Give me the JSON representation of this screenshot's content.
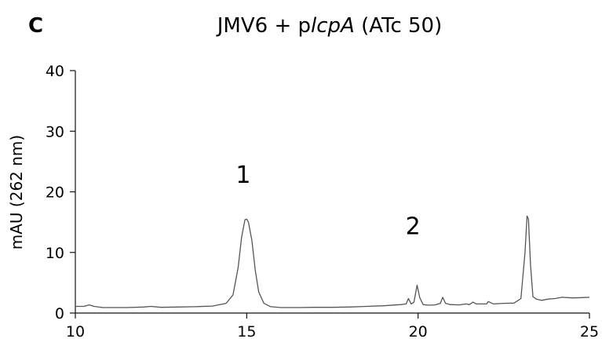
{
  "panel_label": "C",
  "chart_data": {
    "type": "line",
    "title_parts": [
      {
        "text": "JMV6 + p",
        "italic": false
      },
      {
        "text": "lcpA",
        "italic": true
      },
      {
        "text": " (ATc 50)",
        "italic": false
      }
    ],
    "xlabel": "",
    "ylabel": "mAU (262 nm)",
    "xlim": [
      10,
      25
    ],
    "ylim": [
      0,
      40
    ],
    "xticks": [
      10,
      15,
      20,
      25
    ],
    "yticks": [
      0,
      10,
      20,
      30,
      40
    ],
    "grid": false,
    "series": [
      {
        "color": "#555555",
        "x": [
          10.0,
          10.25,
          10.4,
          10.55,
          10.8,
          11.5,
          12.0,
          12.2,
          12.5,
          13.0,
          13.5,
          14.0,
          14.4,
          14.6,
          14.75,
          14.85,
          14.95,
          15.0,
          15.05,
          15.15,
          15.25,
          15.35,
          15.5,
          15.7,
          16.0,
          16.5,
          17.0,
          17.5,
          18.0,
          18.5,
          19.0,
          19.5,
          19.65,
          19.72,
          19.8,
          19.88,
          19.97,
          20.05,
          20.15,
          20.3,
          20.5,
          20.65,
          20.72,
          20.8,
          20.95,
          21.2,
          21.4,
          21.5,
          21.6,
          21.7,
          21.8,
          22.0,
          22.05,
          22.2,
          22.5,
          22.8,
          23.0,
          23.12,
          23.18,
          23.22,
          23.28,
          23.35,
          23.45,
          23.6,
          23.8,
          24.0,
          24.2,
          24.5,
          24.8,
          25.0
        ],
        "y": [
          1.1,
          1.1,
          1.35,
          1.1,
          0.9,
          0.9,
          1.0,
          1.1,
          0.95,
          1.0,
          1.05,
          1.15,
          1.6,
          3.0,
          7.5,
          12.5,
          15.4,
          15.5,
          15.0,
          12.0,
          7.0,
          3.5,
          1.6,
          1.05,
          0.9,
          0.9,
          0.95,
          0.95,
          1.0,
          1.1,
          1.2,
          1.4,
          1.5,
          2.4,
          1.5,
          1.8,
          4.6,
          2.5,
          1.4,
          1.3,
          1.35,
          1.6,
          2.6,
          1.6,
          1.4,
          1.35,
          1.5,
          1.4,
          1.8,
          1.5,
          1.5,
          1.5,
          1.9,
          1.5,
          1.6,
          1.65,
          2.4,
          10.0,
          16.0,
          15.5,
          8.0,
          2.7,
          2.3,
          2.1,
          2.3,
          2.4,
          2.6,
          2.5,
          2.55,
          2.6
        ]
      }
    ],
    "annotations": [
      {
        "text": "1",
        "x": 14.9,
        "y": 21.5
      },
      {
        "text": "2",
        "x": 19.85,
        "y": 13.0
      }
    ]
  }
}
